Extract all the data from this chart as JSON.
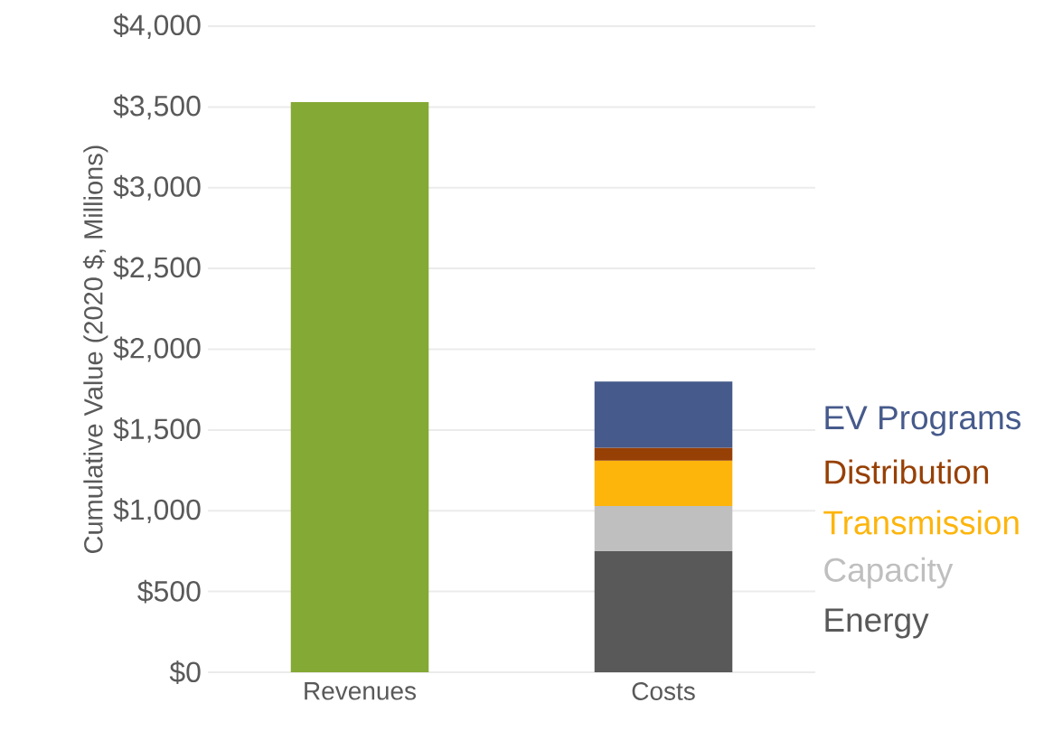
{
  "chart_data": {
    "type": "bar",
    "stacked": true,
    "ylabel": "Cumulative Value (2020 $, Millions)",
    "categories": [
      "Revenues",
      "Costs"
    ],
    "series": [
      {
        "color": "#84a935",
        "values": [
          3530,
          null
        ]
      },
      {
        "name": "Energy",
        "color": "#595959",
        "values": [
          null,
          750
        ]
      },
      {
        "name": "Capacity",
        "color": "#bfbfbf",
        "values": [
          null,
          280
        ]
      },
      {
        "name": "Transmission",
        "color": "#fdb50c",
        "values": [
          null,
          280
        ]
      },
      {
        "name": "Distribution",
        "color": "#974005",
        "values": [
          null,
          80
        ]
      },
      {
        "name": "EV Programs",
        "color": "#465a8b",
        "values": [
          null,
          410
        ]
      }
    ],
    "ylim": [
      0,
      4000
    ],
    "yticks": [
      {
        "value": 0,
        "label": "$0"
      },
      {
        "value": 500,
        "label": "$500"
      },
      {
        "value": 1000,
        "label": "$1,000"
      },
      {
        "value": 1500,
        "label": "$1,500"
      },
      {
        "value": 2000,
        "label": "$2,000"
      },
      {
        "value": 2500,
        "label": "$2,500"
      },
      {
        "value": 3000,
        "label": "$3,000"
      },
      {
        "value": 3500,
        "label": "$3,500"
      },
      {
        "value": 4000,
        "label": "$4,000"
      }
    ],
    "grid": "y",
    "legend": "right"
  }
}
